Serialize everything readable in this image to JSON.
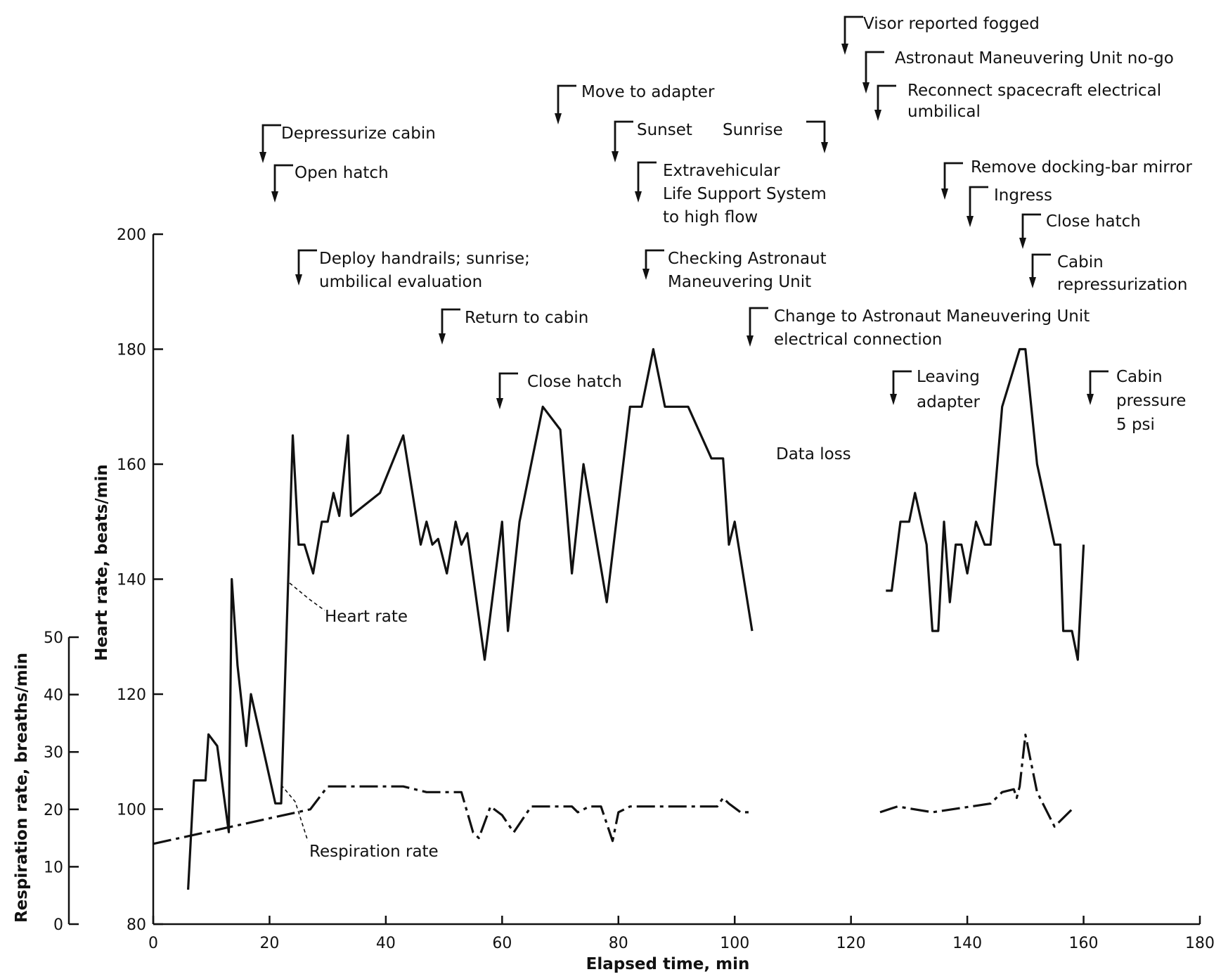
{
  "chart_data": {
    "type": "line",
    "xlabel": "Elapsed time, min",
    "ylabel": "Heart rate, beats/min",
    "y2label": "Respiration rate, breaths/min",
    "xlim": [
      0,
      180
    ],
    "ylim": [
      80,
      200
    ],
    "y2lim": [
      0,
      50
    ],
    "x_ticks": [
      "0",
      "20",
      "40",
      "60",
      "80",
      "100",
      "120",
      "140",
      "160",
      "180"
    ],
    "y_ticks": [
      "80",
      "100",
      "120",
      "140",
      "160",
      "180",
      "200"
    ],
    "y2_ticks": [
      "0",
      "10",
      "20",
      "30",
      "40",
      "50"
    ],
    "series": [
      {
        "name": "Heart rate",
        "axis": "left",
        "style": "solid",
        "segments": [
          [
            [
              6,
              86
            ],
            [
              7,
              105
            ],
            [
              9,
              105
            ],
            [
              9.5,
              113
            ],
            [
              11,
              111
            ],
            [
              13,
              96
            ],
            [
              13.5,
              140
            ],
            [
              14.5,
              125
            ],
            [
              16,
              111
            ],
            [
              16.8,
              120
            ],
            [
              21,
              101
            ],
            [
              22,
              101
            ],
            [
              24,
              165
            ],
            [
              25,
              146
            ],
            [
              26,
              146
            ],
            [
              27.5,
              141
            ],
            [
              29,
              150
            ],
            [
              30,
              150
            ],
            [
              31,
              155
            ],
            [
              32,
              151
            ],
            [
              33.5,
              165
            ],
            [
              34,
              151
            ],
            [
              39,
              155
            ],
            [
              43,
              165
            ],
            [
              46,
              146
            ],
            [
              47,
              150
            ],
            [
              48,
              146
            ],
            [
              49,
              147
            ],
            [
              50.5,
              141
            ],
            [
              52,
              150
            ],
            [
              53,
              146
            ],
            [
              54,
              148
            ],
            [
              57,
              126
            ],
            [
              60,
              150
            ],
            [
              61,
              131
            ],
            [
              63,
              150
            ],
            [
              67,
              170
            ],
            [
              70,
              166
            ],
            [
              72,
              141
            ],
            [
              74,
              160
            ],
            [
              78,
              136
            ],
            [
              82,
              170
            ],
            [
              84,
              170
            ],
            [
              86,
              180
            ],
            [
              88,
              170
            ],
            [
              92,
              170
            ],
            [
              96,
              161
            ],
            [
              98,
              161
            ],
            [
              99,
              146
            ],
            [
              100,
              150
            ],
            [
              103,
              131
            ]
          ],
          [
            [
              126,
              138
            ],
            [
              127,
              138
            ],
            [
              128.5,
              150
            ],
            [
              130,
              150
            ],
            [
              131,
              155
            ],
            [
              133,
              146
            ],
            [
              134,
              131
            ],
            [
              135,
              131
            ],
            [
              136,
              150
            ],
            [
              137,
              136
            ],
            [
              138,
              146
            ],
            [
              139,
              146
            ],
            [
              140,
              141
            ],
            [
              141.5,
              150
            ],
            [
              143,
              146
            ],
            [
              144,
              146
            ],
            [
              146,
              170
            ],
            [
              149,
              180
            ],
            [
              150,
              180
            ],
            [
              152,
              160
            ],
            [
              155,
              146
            ],
            [
              156,
              146
            ],
            [
              156.5,
              131
            ],
            [
              158,
              131
            ],
            [
              159,
              126
            ],
            [
              160,
              146
            ]
          ]
        ]
      },
      {
        "name": "Respiration rate",
        "axis": "right",
        "style": "dash-dot",
        "segments": [
          [
            [
              0,
              14
            ],
            [
              27,
              20
            ],
            [
              30,
              24
            ],
            [
              43,
              24
            ],
            [
              47,
              23
            ],
            [
              53,
              23
            ],
            [
              55,
              16
            ],
            [
              56,
              15
            ],
            [
              58,
              20.5
            ],
            [
              60,
              19
            ],
            [
              62,
              16
            ],
            [
              65,
              20.5
            ],
            [
              72,
              20.5
            ],
            [
              73,
              19.5
            ],
            [
              75,
              20.5
            ],
            [
              77,
              20.5
            ],
            [
              79,
              14.5
            ],
            [
              80,
              19.5
            ],
            [
              82,
              20.5
            ],
            [
              97,
              20.5
            ],
            [
              98,
              22
            ],
            [
              99,
              21
            ],
            [
              101,
              19.5
            ],
            [
              103,
              19.5
            ]
          ],
          [
            [
              125,
              19.5
            ],
            [
              128,
              20.5
            ],
            [
              134,
              19.5
            ],
            [
              144,
              21
            ],
            [
              146,
              23
            ],
            [
              148,
              23.5
            ],
            [
              148.5,
              22
            ],
            [
              149,
              24
            ],
            [
              150,
              33
            ],
            [
              151,
              28
            ],
            [
              152,
              23
            ],
            [
              155,
              17
            ],
            [
              158,
              20
            ]
          ]
        ]
      }
    ],
    "series_labels": {
      "heart_rate": "Heart rate",
      "respiration_rate": "Respiration rate"
    },
    "annotations": [
      {
        "text": "Depressurize cabin",
        "x": 19
      },
      {
        "text": "Open hatch",
        "x": 21
      },
      {
        "text": "Deploy handrails; sunrise; umbilical evaluation",
        "x": 25
      },
      {
        "text": "Return to cabin",
        "x": 50
      },
      {
        "text": "Close hatch",
        "x": 60
      },
      {
        "text": "Move to adapter",
        "x": 70
      },
      {
        "text": "Sunset",
        "x": 79
      },
      {
        "text": "Sunrise",
        "x": 115
      },
      {
        "text": "Extravehicular Life Support System to high flow",
        "x": 84
      },
      {
        "text": "Checking Astronaut Maneuvering Unit",
        "x": 85
      },
      {
        "text": "Change to Astronaut Maneuvering Unit electrical connection",
        "x": 103
      },
      {
        "text": "Visor reported fogged",
        "x": 120
      },
      {
        "text": "Astronaut Maneuvering Unit no-go",
        "x": 123
      },
      {
        "text": "Reconnect spacecraft electrical umbilical",
        "x": 125
      },
      {
        "text": "Remove docking-bar mirror",
        "x": 137
      },
      {
        "text": "Ingress",
        "x": 141
      },
      {
        "text": "Close hatch",
        "x": 150
      },
      {
        "text": "Cabin repressurization",
        "x": 152
      },
      {
        "text": "Leaving adapter",
        "x": 128
      },
      {
        "text": "Cabin pressure 5 psi",
        "x": 162
      }
    ],
    "data_loss_label": "Data loss",
    "grid": false
  }
}
